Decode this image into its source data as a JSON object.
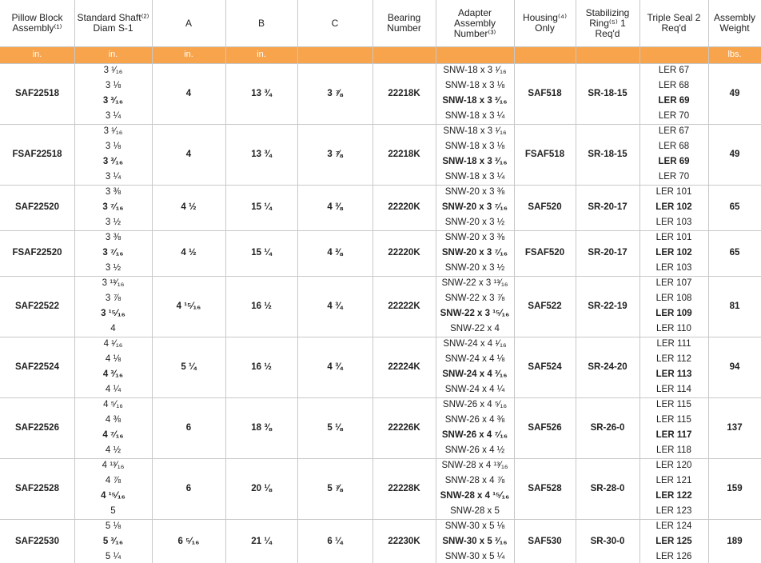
{
  "header": {
    "columns": [
      "Pillow Block Assembly⁽¹⁾",
      "Standard Shaft⁽²⁾ Diam S-1",
      "A",
      "B",
      "C",
      "Bearing Number",
      "Adapter Assembly Number⁽³⁾",
      "Housing⁽⁴⁾ Only",
      "Stabilizing Ring⁽⁵⁾ 1 Req'd",
      "Triple Seal 2 Req'd",
      "Assembly Weight"
    ],
    "units": [
      "in.",
      "in.",
      "in.",
      "in.",
      null,
      null,
      null,
      null,
      null,
      null,
      "lbs."
    ]
  },
  "groups": [
    {
      "assembly": "SAF22518",
      "shafts": [
        "3 ¹⁄₁₆",
        "3 ⅛",
        "3 ³⁄₁₆",
        "3 ¼"
      ],
      "a": "4",
      "b": "13 ¾",
      "c": "3 ⅞",
      "bearing": "22218K",
      "adapters": [
        "SNW-18 x 3 ¹⁄₁₆",
        "SNW-18 x 3 ⅛",
        "SNW-18 x 3 ³⁄₁₆",
        "SNW-18 x 3 ¼"
      ],
      "housing": "SAF518",
      "ring": "SR-18-15",
      "seals": [
        "LER 67",
        "LER 68",
        "LER 69",
        "LER 70"
      ],
      "weight": "49"
    },
    {
      "assembly": "FSAF22518",
      "shafts": [
        "3 ¹⁄₁₆",
        "3 ⅛",
        "3 ³⁄₁₆",
        "3 ¼"
      ],
      "a": "4",
      "b": "13 ¾",
      "c": "3 ⅞",
      "bearing": "22218K",
      "adapters": [
        "SNW-18 x 3 ¹⁄₁₆",
        "SNW-18 x 3 ⅛",
        "SNW-18 x 3 ³⁄₁₆",
        "SNW-18 x 3 ¼"
      ],
      "housing": "FSAF518",
      "ring": "SR-18-15",
      "seals": [
        "LER 67",
        "LER 68",
        "LER 69",
        "LER 70"
      ],
      "weight": "49"
    },
    {
      "assembly": "SAF22520",
      "shafts": [
        "3 ⅜",
        "3 ⁷⁄₁₆",
        "3 ½"
      ],
      "a": "4 ½",
      "b": "15 ¼",
      "c": "4 ⅜",
      "bearing": "22220K",
      "adapters": [
        "SNW-20 x 3 ⅜",
        "SNW-20 x 3 ⁷⁄₁₆",
        "SNW-20 x 3 ½"
      ],
      "housing": "SAF520",
      "ring": "SR-20-17",
      "seals": [
        "LER 101",
        "LER 102",
        "LER 103"
      ],
      "weight": "65"
    },
    {
      "assembly": "FSAF22520",
      "shafts": [
        "3 ⅜",
        "3 ⁷⁄₁₆",
        "3 ½"
      ],
      "a": "4 ½",
      "b": "15 ¼",
      "c": "4 ⅜",
      "bearing": "22220K",
      "adapters": [
        "SNW-20 x 3 ⅜",
        "SNW-20 x 3 ⁷⁄₁₆",
        "SNW-20 x 3 ½"
      ],
      "housing": "FSAF520",
      "ring": "SR-20-17",
      "seals": [
        "LER 101",
        "LER 102",
        "LER 103"
      ],
      "weight": "65"
    },
    {
      "assembly": "SAF22522",
      "shafts": [
        "3 ¹³⁄₁₆",
        "3 ⅞",
        "3 ¹⁵⁄₁₆",
        "4"
      ],
      "a": "4 ¹⁵⁄₁₆",
      "b": "16 ½",
      "c": "4 ¾",
      "bearing": "22222K",
      "adapters": [
        "SNW-22 x 3 ¹³⁄₁₆",
        "SNW-22 x 3 ⅞",
        "SNW-22 x 3 ¹⁵⁄₁₆",
        "SNW-22 x 4"
      ],
      "housing": "SAF522",
      "ring": "SR-22-19",
      "seals": [
        "LER 107",
        "LER 108",
        "LER 109",
        "LER 110"
      ],
      "weight": "81"
    },
    {
      "assembly": "SAF22524",
      "shafts": [
        "4 ¹⁄₁₆",
        "4 ⅛",
        "4 ³⁄₁₆",
        "4 ¼"
      ],
      "a": "5 ¼",
      "b": "16 ½",
      "c": "4 ¾",
      "bearing": "22224K",
      "adapters": [
        "SNW-24 x 4 ¹⁄₁₆",
        "SNW-24 x 4 ⅛",
        "SNW-24 x 4 ³⁄₁₆",
        "SNW-24 x 4 ¼"
      ],
      "housing": "SAF524",
      "ring": "SR-24-20",
      "seals": [
        "LER 111",
        "LER 112",
        "LER 113",
        "LER 114"
      ],
      "weight": "94"
    },
    {
      "assembly": "SAF22526",
      "shafts": [
        "4 ⁵⁄₁₆",
        "4 ⅜",
        "4 ⁷⁄₁₆",
        "4 ½"
      ],
      "a": "6",
      "b": "18 ⅜",
      "c": "5 ⅛",
      "bearing": "22226K",
      "adapters": [
        "SNW-26 x 4 ⁵⁄₁₆",
        "SNW-26 x 4 ⅜",
        "SNW-26 x 4 ⁷⁄₁₆",
        "SNW-26 x 4 ½"
      ],
      "housing": "SAF526",
      "ring": "SR-26-0",
      "seals": [
        "LER 115",
        "LER 115",
        "LER 117",
        "LER 118"
      ],
      "weight": "137"
    },
    {
      "assembly": "SAF22528",
      "shafts": [
        "4 ¹³⁄₁₆",
        "4 ⅞",
        "4 ¹⁵⁄₁₆",
        "5"
      ],
      "a": "6",
      "b": "20 ⅛",
      "c": "5 ⅞",
      "bearing": "22228K",
      "adapters": [
        "SNW-28 x 4 ¹³⁄₁₆",
        "SNW-28 x 4 ⅞",
        "SNW-28 x 4 ¹⁵⁄₁₆",
        "SNW-28 x 5"
      ],
      "housing": "SAF528",
      "ring": "SR-28-0",
      "seals": [
        "LER 120",
        "LER 121",
        "LER 122",
        "LER 123"
      ],
      "weight": "159"
    },
    {
      "assembly": "SAF22530",
      "shafts": [
        "5 ⅛",
        "5 ³⁄₁₆",
        "5 ¼"
      ],
      "a": "6 ⁵⁄₁₆",
      "b": "21 ¼",
      "c": "6 ¼",
      "bearing": "22230K",
      "adapters": [
        "SNW-30 x 5 ⅛",
        "SNW-30 x 5 ³⁄₁₆",
        "SNW-30 x 5 ¼"
      ],
      "housing": "SAF530",
      "ring": "SR-30-0",
      "seals": [
        "LER 124",
        "LER 125",
        "LER 126"
      ],
      "weight": "189"
    }
  ]
}
